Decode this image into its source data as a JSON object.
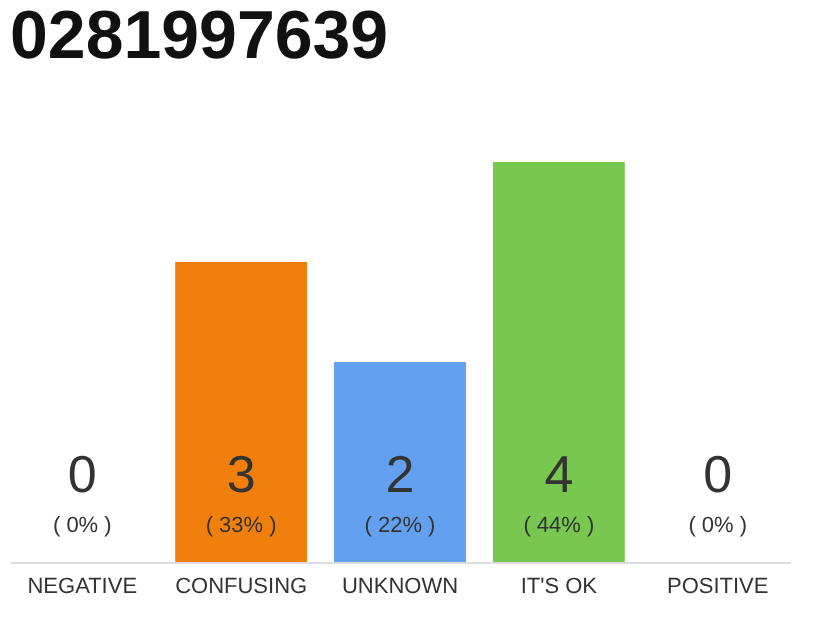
{
  "chart_data": {
    "type": "bar",
    "title": "0281997639",
    "categories": [
      "NEGATIVE",
      "CONFUSING",
      "UNKNOWN",
      "IT'S OK",
      "POSITIVE"
    ],
    "values": [
      0,
      33,
      22,
      44,
      0
    ],
    "colors": [
      "#eeeeee",
      "#f07f0c",
      "#64a0f0",
      "#78c850",
      "#eeeeee"
    ],
    "value_labels": [
      "( 0% )",
      "( 33% )",
      "( 22% )",
      "( 44% )",
      "( 0% )"
    ],
    "annotations": [
      "0",
      "3",
      "2",
      "4",
      "0"
    ],
    "grid": false
  }
}
